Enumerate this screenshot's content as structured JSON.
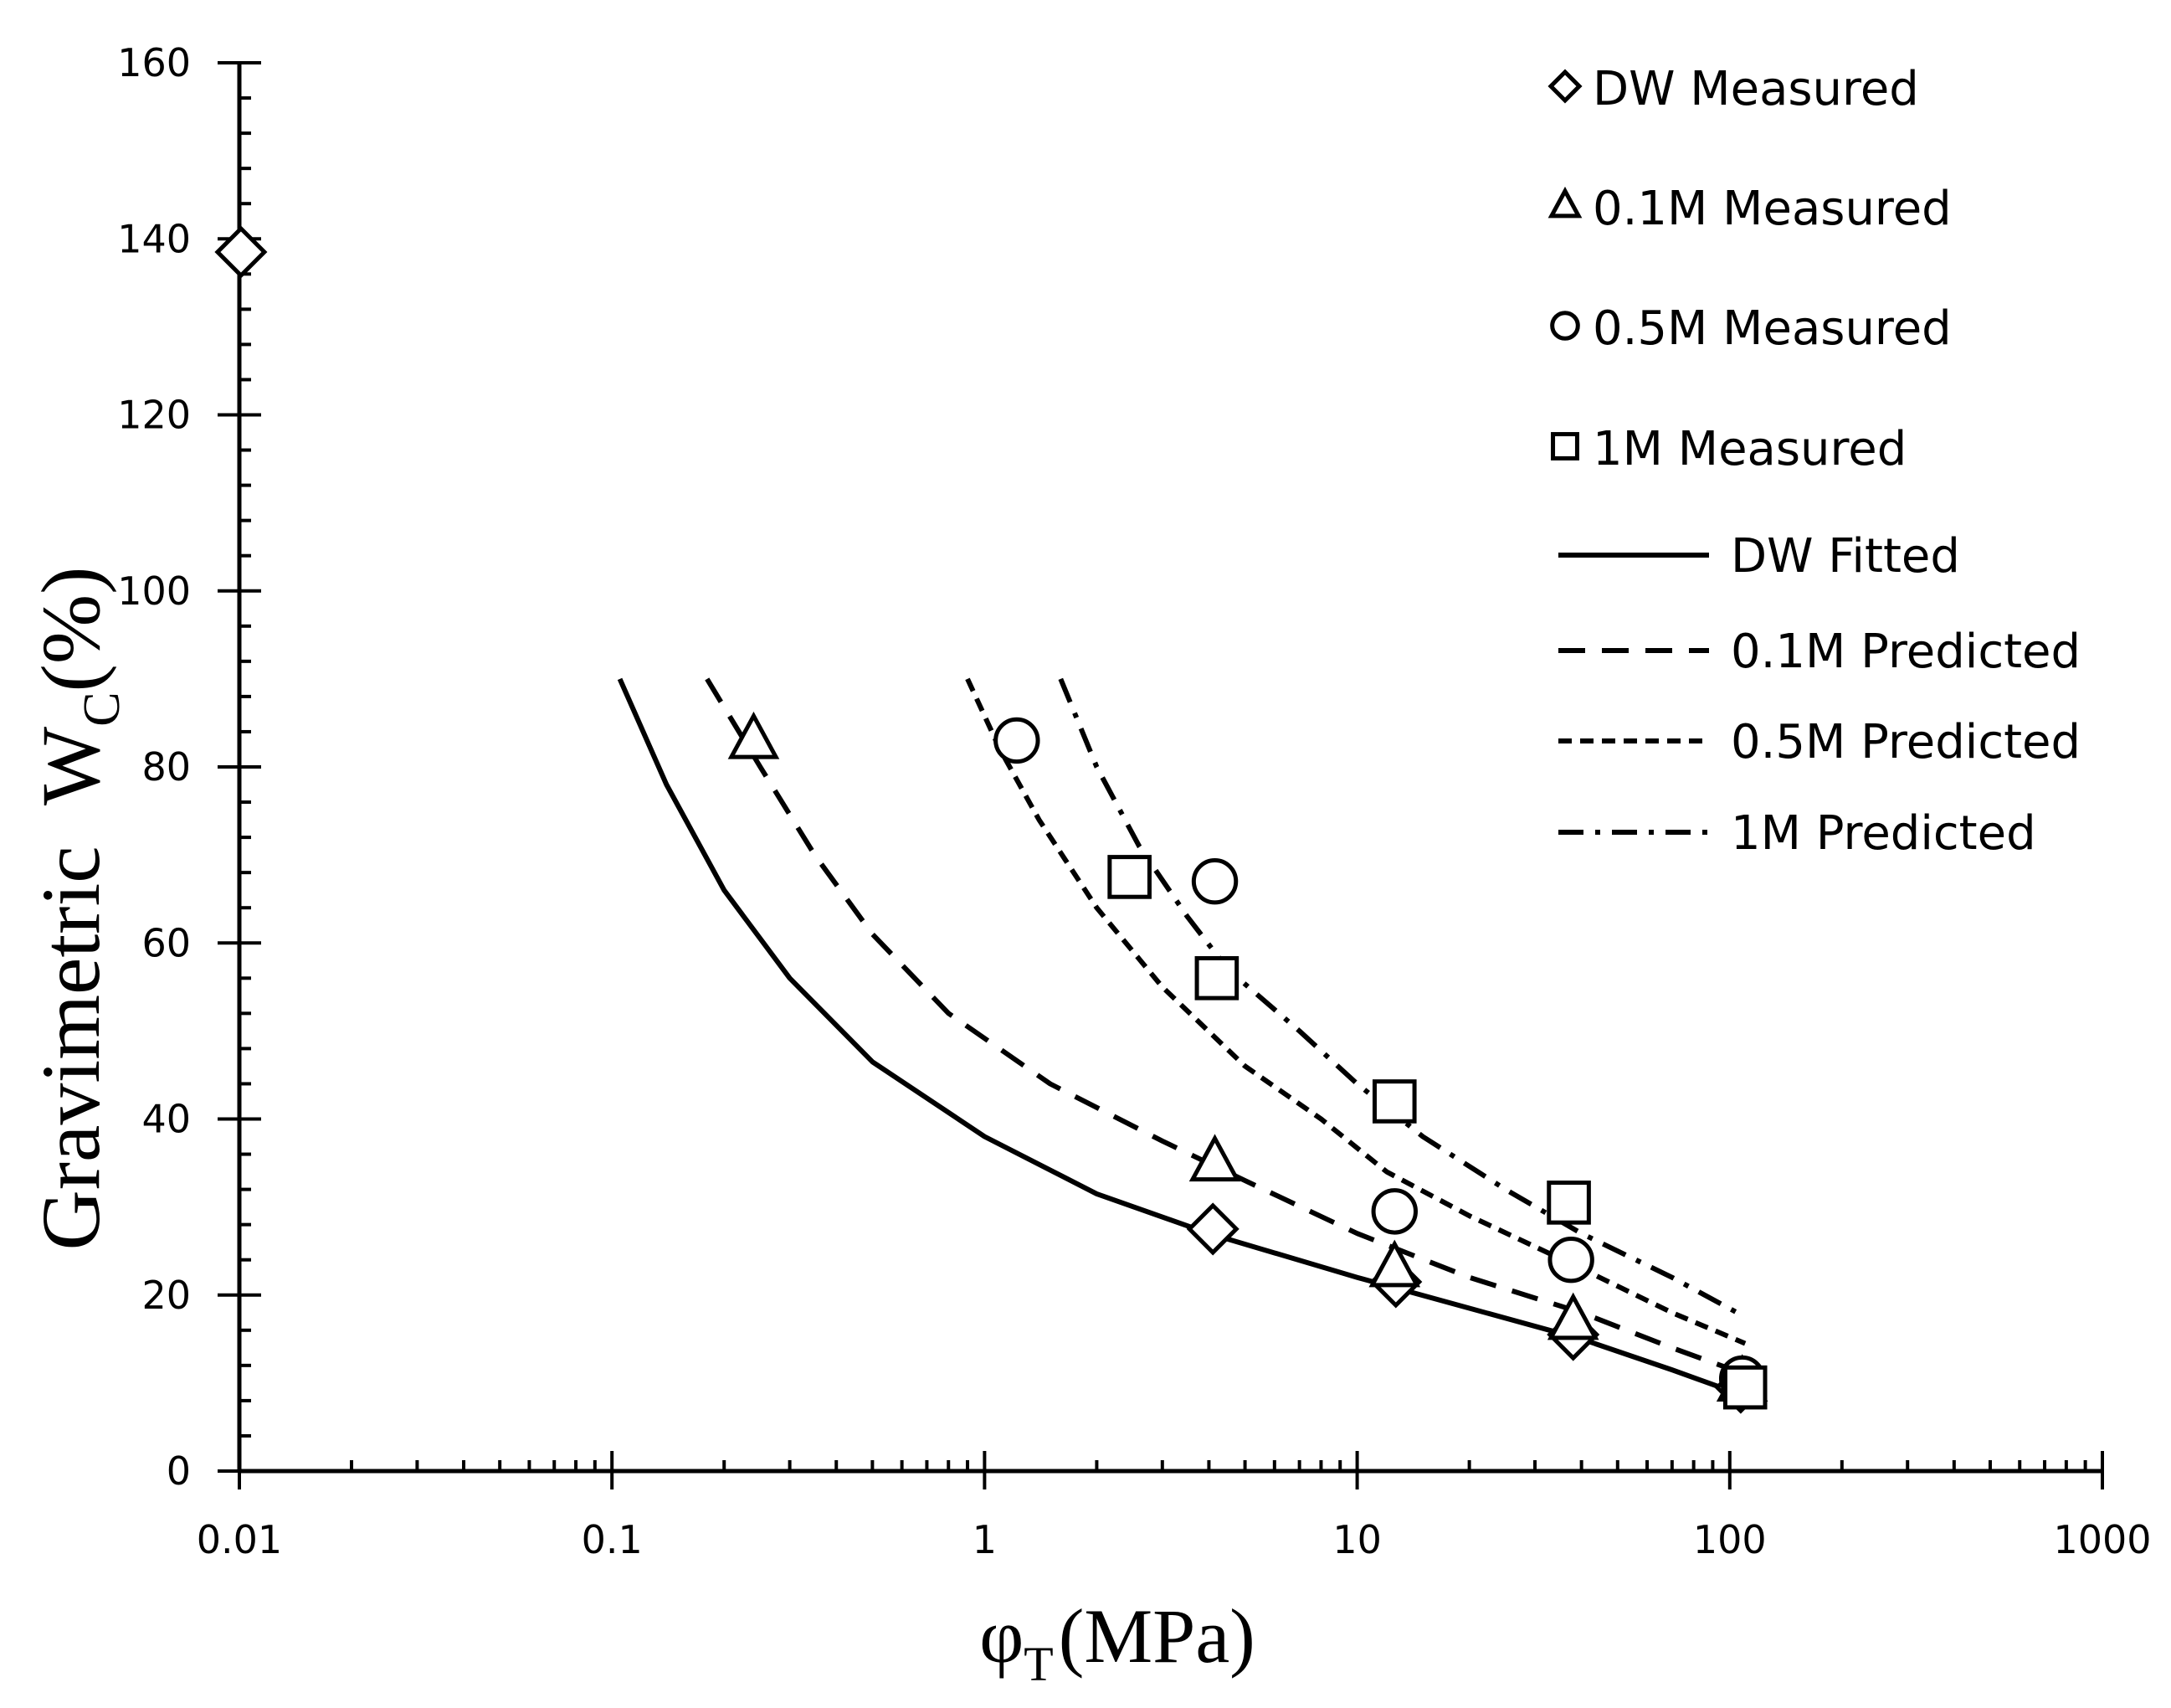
{
  "chart_data": {
    "type": "scatter",
    "x_scale": "log",
    "xlim": [
      0.01,
      1000
    ],
    "ylim": [
      0,
      160
    ],
    "x_ticks": [
      {
        "value": 0.01,
        "label": "0.01"
      },
      {
        "value": 0.1,
        "label": "0.1"
      },
      {
        "value": 1,
        "label": "1"
      },
      {
        "value": 10,
        "label": "10"
      },
      {
        "value": 100,
        "label": "100"
      },
      {
        "value": 1000,
        "label": "1000"
      }
    ],
    "y_ticks": [
      {
        "value": 0,
        "label": "0"
      },
      {
        "value": 20,
        "label": "20"
      },
      {
        "value": 40,
        "label": "40"
      },
      {
        "value": 60,
        "label": "60"
      },
      {
        "value": 80,
        "label": "80"
      },
      {
        "value": 100,
        "label": "100"
      },
      {
        "value": 120,
        "label": "120"
      },
      {
        "value": 140,
        "label": "140"
      },
      {
        "value": 160,
        "label": "160"
      }
    ],
    "xlabel": {
      "symbol": "φ",
      "subscript": "T",
      "rest": "(MPa)"
    },
    "ylabel": {
      "prefix": "Gravimetric  W",
      "subscript": "C",
      "rest": "(%)"
    },
    "measured_series": [
      {
        "name": "DW Measured",
        "marker": "diamond",
        "points": [
          [
            0.0101,
            138.5
          ],
          [
            4.1,
            27.5
          ],
          [
            12.7,
            21.5
          ],
          [
            38,
            15.5
          ],
          [
            107,
            9.5
          ]
        ]
      },
      {
        "name": "0.1M Measured",
        "marker": "triangle",
        "points": [
          [
            0.24,
            83
          ],
          [
            4.15,
            35
          ],
          [
            12.6,
            23
          ],
          [
            38,
            17
          ],
          [
            108,
            10
          ]
        ]
      },
      {
        "name": "0.5M Measured",
        "marker": "circle",
        "points": [
          [
            1.22,
            83
          ],
          [
            4.15,
            67
          ],
          [
            12.6,
            29.5
          ],
          [
            37.5,
            24
          ],
          [
            108,
            10.5
          ]
        ]
      },
      {
        "name": "1M Measured",
        "marker": "square",
        "points": [
          [
            2.45,
            67.5
          ],
          [
            4.2,
            56
          ],
          [
            12.6,
            42
          ],
          [
            37,
            30.5
          ],
          [
            110,
            9.5
          ]
        ]
      }
    ],
    "fitted_series": [
      {
        "name": "DW Fitted",
        "style": "solid",
        "points": [
          [
            0.105,
            90
          ],
          [
            0.14,
            78
          ],
          [
            0.2,
            66
          ],
          [
            0.3,
            56
          ],
          [
            0.5,
            46.5
          ],
          [
            1,
            38
          ],
          [
            2,
            31.5
          ],
          [
            4,
            27
          ],
          [
            10,
            22
          ],
          [
            20,
            18.5
          ],
          [
            40,
            15
          ],
          [
            70,
            11.5
          ],
          [
            110,
            8.5
          ]
        ]
      },
      {
        "name": "0.1M Predicted",
        "style": "dash",
        "points": [
          [
            0.18,
            90
          ],
          [
            0.25,
            80
          ],
          [
            0.35,
            70
          ],
          [
            0.5,
            61
          ],
          [
            0.8,
            52
          ],
          [
            1.5,
            44
          ],
          [
            3,
            37.5
          ],
          [
            5,
            33
          ],
          [
            10,
            27
          ],
          [
            20,
            22
          ],
          [
            40,
            18
          ],
          [
            70,
            14
          ],
          [
            110,
            11
          ]
        ]
      },
      {
        "name": "0.5M Predicted",
        "style": "shortdash",
        "points": [
          [
            0.9,
            90
          ],
          [
            1.1,
            82
          ],
          [
            1.4,
            74
          ],
          [
            2,
            64
          ],
          [
            3,
            55
          ],
          [
            5,
            46
          ],
          [
            8,
            40
          ],
          [
            12,
            34
          ],
          [
            20,
            29
          ],
          [
            40,
            23
          ],
          [
            70,
            18
          ],
          [
            110,
            14.5
          ]
        ]
      },
      {
        "name": "1M Predicted",
        "style": "dashdot",
        "points": [
          [
            1.6,
            90
          ],
          [
            2,
            80
          ],
          [
            2.6,
            71
          ],
          [
            3.5,
            63
          ],
          [
            4.5,
            57
          ],
          [
            7,
            50
          ],
          [
            10,
            44
          ],
          [
            15,
            38
          ],
          [
            25,
            32
          ],
          [
            40,
            27
          ],
          [
            70,
            22
          ],
          [
            110,
            17.5
          ]
        ]
      }
    ],
    "legend": {
      "position": "top-right",
      "entries": [
        {
          "label": "DW Measured",
          "kind": "marker",
          "style": "diamond"
        },
        {
          "label": "0.1M Measured",
          "kind": "marker",
          "style": "triangle"
        },
        {
          "label": "0.5M Measured",
          "kind": "marker",
          "style": "circle"
        },
        {
          "label": "1M Measured",
          "kind": "marker",
          "style": "square"
        },
        {
          "label": "DW Fitted",
          "kind": "line",
          "style": "solid"
        },
        {
          "label": "0.1M Predicted",
          "kind": "line",
          "style": "dash"
        },
        {
          "label": "0.5M Predicted",
          "kind": "line",
          "style": "shortdash"
        },
        {
          "label": "1M Predicted",
          "kind": "line",
          "style": "dashdot"
        }
      ]
    },
    "grid": false
  }
}
